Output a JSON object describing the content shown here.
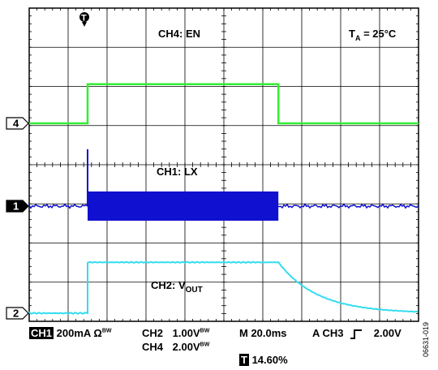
{
  "chart_data": {
    "type": "line",
    "title": "",
    "annotation_temp": "T",
    "annotation_temp_sub": "A",
    "annotation_temp_value": " = 25°C",
    "time_per_div": "20.0ms",
    "divisions": {
      "x": 10,
      "y": 8
    },
    "trigger_position_div": 1.5,
    "grid": true,
    "series": [
      {
        "name": "CH4: EN",
        "channel": "4",
        "color": "#33ee33",
        "volts_per_div": "2.00V",
        "points_div": [
          [
            0,
            0
          ],
          [
            1.5,
            0
          ],
          [
            1.5,
            2
          ],
          [
            6.4,
            2
          ],
          [
            6.4,
            0
          ],
          [
            10,
            0
          ]
        ]
      },
      {
        "name": "CH1: LX",
        "channel": "1",
        "color": "#1010d0",
        "amps_per_div": "200mA",
        "burst_start_div": 1.5,
        "burst_end_div": 6.4,
        "spike_div": 1.5
      },
      {
        "name": "CH2: V",
        "name_sub": "OUT",
        "channel": "2",
        "color": "#33ddee",
        "volts_per_div": "1.00V",
        "rise_at_div": 1.5,
        "high_level_div": 1.3,
        "decay_start_div": 6.4
      }
    ]
  },
  "status": {
    "ch1_tag": "CH1",
    "ch1_scale": "200mA",
    "ohm": "Ω",
    "bw": "B",
    "bw_sub": "W",
    "ch2": "CH2",
    "ch2_scale": "1.00V",
    "ch4": "CH4",
    "ch4_scale": "2.00V",
    "timebase": "M 20.0ms",
    "trigger": "A  CH3",
    "trigger_level": "2.00V",
    "trigger_pos": "14.60%"
  },
  "figure_id": "06631-019"
}
